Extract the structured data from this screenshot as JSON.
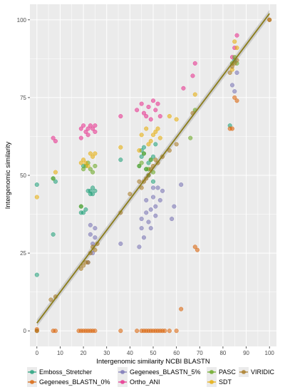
{
  "chart_data": {
    "type": "scatter",
    "xlabel": "Intergenomic similarity NCBI BLASTN",
    "ylabel": "Intergenomic similarity",
    "xlim": [
      -3,
      103
    ],
    "ylim": [
      -5,
      105
    ],
    "x_ticks": [
      0,
      10,
      20,
      30,
      40,
      50,
      60,
      70,
      80,
      90,
      100
    ],
    "y_ticks": [
      0,
      25,
      50,
      75,
      100
    ],
    "grid": true,
    "legend_position": "bottom",
    "series": [
      {
        "name": "Emboss_Stretcher",
        "color": "#1b9e77",
        "x": [
          0,
          0,
          7,
          7,
          8,
          19,
          19,
          20,
          20,
          21,
          22,
          23,
          23,
          24,
          24,
          25,
          36,
          44,
          45,
          45,
          46,
          46,
          47,
          48,
          48,
          49,
          50,
          50,
          51,
          83,
          85
        ],
        "y": [
          47,
          18,
          49,
          31,
          48,
          40,
          38,
          53,
          38,
          39,
          45,
          45,
          44,
          44,
          46,
          45,
          55,
          53,
          58,
          56,
          59,
          57,
          52,
          54,
          50,
          55,
          48,
          56,
          60,
          66,
          87
        ]
      },
      {
        "name": "Gegenees_BLASTN_0%",
        "color": "#d95f02",
        "x": [
          0,
          0,
          7,
          8,
          18,
          19,
          20,
          21,
          22,
          23,
          24,
          25,
          36,
          43,
          45,
          46,
          47,
          48,
          49,
          50,
          51,
          52,
          53,
          54,
          55,
          57,
          60,
          62,
          68,
          69,
          83,
          84,
          85,
          86,
          100
        ],
        "y": [
          0.5,
          0,
          0,
          0,
          0,
          0,
          0,
          0,
          0,
          0,
          0,
          0,
          0,
          0,
          0,
          0,
          0,
          0,
          0,
          0,
          0,
          0,
          0,
          0,
          0,
          0,
          0,
          7,
          27,
          26,
          65,
          65,
          75,
          74,
          100
        ]
      },
      {
        "name": "Gegenees_BLASTN_5%",
        "color": "#7570b3",
        "x": [
          22,
          23,
          23,
          24,
          24,
          25,
          25,
          36,
          44,
          45,
          45,
          46,
          47,
          47,
          48,
          49,
          49,
          50,
          50,
          51,
          51,
          52,
          53,
          54,
          58,
          59,
          62,
          84,
          85,
          86
        ],
        "y": [
          22,
          31,
          34,
          28,
          25,
          33,
          30,
          28,
          27,
          36,
          33,
          30,
          42,
          38,
          35,
          39,
          33,
          43,
          46,
          37,
          40,
          46,
          42,
          45,
          36,
          40,
          47,
          79,
          77,
          83
        ]
      },
      {
        "name": "Ortho_ANI",
        "color": "#e7298a",
        "x": [
          7,
          8,
          19,
          20,
          21,
          22,
          23,
          24,
          25,
          19,
          22,
          25,
          36,
          43,
          45,
          46,
          47,
          48,
          49,
          50,
          51,
          52,
          53,
          63,
          67,
          68,
          84,
          85,
          86
        ],
        "y": [
          62,
          61,
          65,
          66,
          64,
          65,
          66,
          65,
          64,
          62,
          63,
          66,
          69,
          71,
          73,
          70,
          69,
          72,
          68,
          74,
          71,
          73,
          69,
          78,
          82,
          86,
          88,
          91,
          95
        ]
      },
      {
        "name": "PASC",
        "color": "#66a61e",
        "x": [
          7,
          19,
          20,
          21,
          22,
          23,
          24,
          25,
          44,
          45,
          46,
          47,
          48,
          49,
          50,
          66,
          68,
          84,
          85,
          86
        ],
        "y": [
          49,
          40,
          52,
          53,
          54,
          52,
          51,
          53,
          53,
          54,
          57,
          52,
          52,
          55,
          51,
          62,
          71,
          86,
          88,
          86
        ]
      },
      {
        "name": "SDT",
        "color": "#e6ab02",
        "x": [
          0,
          8,
          19,
          20,
          21,
          22,
          23,
          24,
          25,
          36,
          44,
          45,
          47,
          48,
          49,
          50,
          51,
          52,
          53,
          57,
          60,
          68,
          84,
          85,
          86
        ],
        "y": [
          43,
          51,
          54,
          55,
          54,
          53,
          57,
          56,
          57,
          59,
          58,
          63,
          65,
          60,
          61,
          63,
          64,
          65,
          62,
          69,
          68,
          76,
          84,
          93,
          91
        ]
      },
      {
        "name": "VIRIDIC",
        "color": "#a6761d",
        "x": [
          0,
          6,
          8,
          19,
          20,
          21,
          22,
          23,
          24,
          25,
          26,
          36,
          40,
          44,
          45,
          46,
          47,
          48,
          49,
          50,
          51,
          52,
          54,
          57,
          60,
          67,
          83,
          84,
          85,
          86,
          100
        ],
        "y": [
          0,
          10,
          11,
          20,
          21,
          22,
          22,
          25,
          27,
          26,
          28,
          38,
          44,
          48,
          46,
          48,
          49,
          50,
          52,
          53,
          55,
          54,
          56,
          58,
          60,
          70,
          83,
          85,
          86,
          87,
          100
        ]
      }
    ],
    "regression_line": {
      "color": "#8b7d1a",
      "x": [
        0,
        100
      ],
      "y": [
        2.5,
        102
      ],
      "confidence_band": 1.2
    }
  },
  "legend": {
    "items": [
      {
        "label": "Emboss_Stretcher",
        "color": "#1b9e77"
      },
      {
        "label": "Gegenees_BLASTN_0%",
        "color": "#d95f02"
      },
      {
        "label": "Gegenees_BLASTN_5%",
        "color": "#7570b3"
      },
      {
        "label": "Ortho_ANI",
        "color": "#e7298a"
      },
      {
        "label": "PASC",
        "color": "#66a61e"
      },
      {
        "label": "SDT",
        "color": "#e6ab02"
      },
      {
        "label": "VIRIDIC",
        "color": "#a6761d"
      }
    ]
  }
}
